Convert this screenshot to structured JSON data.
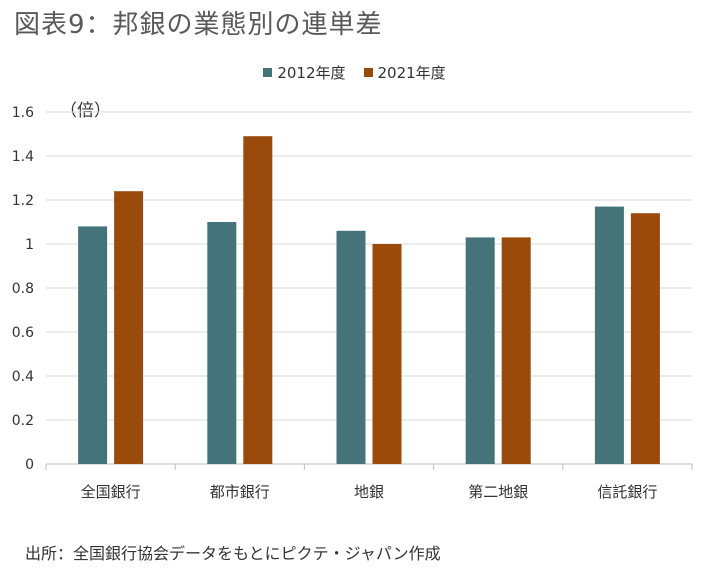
{
  "figure": {
    "title": "図表9：邦銀の業態別の連単差",
    "source": "出所：全国銀行協会データをもとにピクテ・ジャパン作成"
  },
  "chart_data": {
    "type": "bar",
    "title": "図表9：邦銀の業態別の連単差",
    "ylabel": "（倍）",
    "xlabel": "",
    "categories": [
      "全国銀行",
      "都市銀行",
      "地銀",
      "第二地銀",
      "信託銀行"
    ],
    "series": [
      {
        "name": "2012年度",
        "color": "#44737A",
        "values": [
          1.08,
          1.1,
          1.06,
          1.03,
          1.17
        ]
      },
      {
        "name": "2021年度",
        "color": "#9A4A0B",
        "values": [
          1.24,
          1.49,
          1.0,
          1.03,
          1.14
        ]
      }
    ],
    "ylim": [
      0,
      1.6
    ],
    "yticks": [
      "0",
      "0.2",
      "0.4",
      "0.6",
      "0.8",
      "1",
      "1.2",
      "1.4",
      "1.6"
    ],
    "grid": true,
    "legend": "top-center"
  }
}
